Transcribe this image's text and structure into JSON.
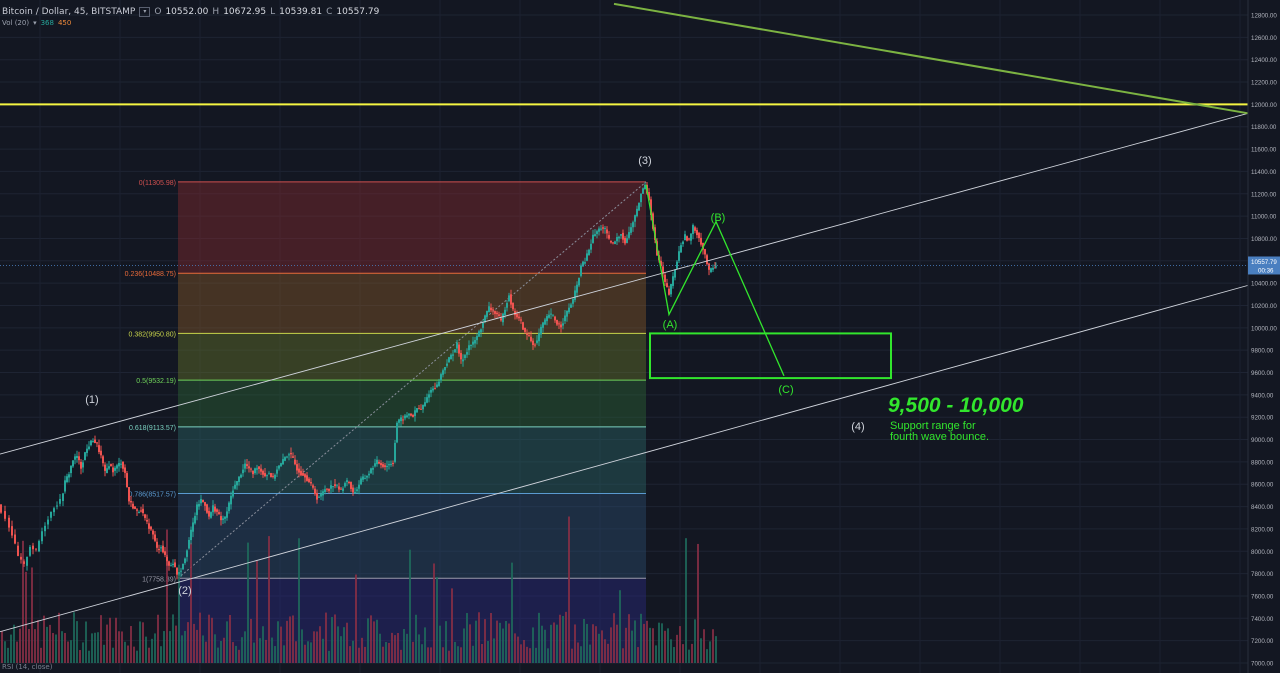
{
  "header": {
    "symbol": "Bitcoin / Dollar, 45, BITSTAMP",
    "o_label": "O",
    "o_value": "10552.00",
    "h_label": "H",
    "h_value": "10672.95",
    "l_label": "L",
    "l_value": "10539.81",
    "c_label": "C",
    "c_value": "10557.79"
  },
  "volume_header": {
    "label": "Vol (20)",
    "value1": "368",
    "value2": "450"
  },
  "footer_label": "RSI (14, close)",
  "colors": {
    "background": "#131722",
    "up_candle": "#26a69a",
    "down_candle": "#ef5350",
    "resistance_line": "#f5f542",
    "wave_green": "#32e62d",
    "trend_green": "#7cb342",
    "channel": "#d0d4dc",
    "price_tag": "#4a7fc0"
  },
  "chart_data": {
    "type": "candlestick",
    "y_axis": {
      "labels": [
        "12800.00",
        "12600.00",
        "12400.00",
        "12200.00",
        "12000.00",
        "11800.00",
        "11600.00",
        "11400.00",
        "11200.00",
        "11000.00",
        "10800.00",
        "10600.00",
        "10400.00",
        "10200.00",
        "10000.00",
        "9800.00",
        "9600.00",
        "9400.00",
        "9200.00",
        "9000.00",
        "8800.00",
        "8600.00",
        "8400.00",
        "8200.00",
        "8000.00",
        "7800.00",
        "7600.00",
        "7400.00",
        "7200.00",
        "7000.00"
      ],
      "range": [
        7000,
        12900
      ]
    },
    "current_price": "10557.79",
    "countdown": "00:36",
    "fibonacci": [
      {
        "label": "0(11305.98)",
        "value": 11305.98,
        "color": "#d0504f"
      },
      {
        "label": "0.236(10488.75)",
        "value": 10488.75,
        "color": "#e86a3a"
      },
      {
        "label": "0.382(9950.80)",
        "value": 9950.8,
        "color": "#c8d44a"
      },
      {
        "label": "0.5(9532.19)",
        "value": 9532.19,
        "color": "#6fd25a"
      },
      {
        "label": "0.618(9113.57)",
        "value": 9113.57,
        "color": "#7ad0c0"
      },
      {
        "label": "0.786(8517.57)",
        "value": 8517.57,
        "color": "#5a9ad0"
      },
      {
        "label": "1(7758.39)",
        "value": 7758.39,
        "color": "#9a9aa8"
      }
    ],
    "resistance_level": 12000,
    "support_zone": {
      "low": 9550,
      "high": 9950
    },
    "wave_labels": [
      {
        "text": "(1)",
        "color": "#d0d4dc"
      },
      {
        "text": "(2)",
        "color": "#d0d4dc"
      },
      {
        "text": "(3)",
        "color": "#d0d4dc"
      },
      {
        "text": "(4)",
        "color": "#d0d4dc"
      },
      {
        "text": "(A)",
        "color": "#32e62d"
      },
      {
        "text": "(B)",
        "color": "#32e62d"
      },
      {
        "text": "(C)",
        "color": "#32e62d"
      }
    ],
    "annotations": {
      "range_title": "9,500 - 10,000",
      "range_line1": "Support range for",
      "range_line2": "fourth wave bounce."
    },
    "price_path": [
      [
        0,
        8420
      ],
      [
        8,
        8300
      ],
      [
        14,
        8150
      ],
      [
        20,
        7950
      ],
      [
        26,
        7870
      ],
      [
        32,
        8050
      ],
      [
        38,
        8000
      ],
      [
        44,
        8180
      ],
      [
        50,
        8300
      ],
      [
        56,
        8400
      ],
      [
        62,
        8450
      ],
      [
        66,
        8620
      ],
      [
        70,
        8700
      ],
      [
        74,
        8820
      ],
      [
        78,
        8850
      ],
      [
        82,
        8750
      ],
      [
        86,
        8880
      ],
      [
        90,
        8950
      ],
      [
        94,
        9000
      ],
      [
        98,
        8950
      ],
      [
        102,
        8850
      ],
      [
        106,
        8700
      ],
      [
        110,
        8780
      ],
      [
        114,
        8720
      ],
      [
        118,
        8760
      ],
      [
        122,
        8800
      ],
      [
        126,
        8700
      ],
      [
        130,
        8450
      ],
      [
        134,
        8400
      ],
      [
        138,
        8350
      ],
      [
        142,
        8380
      ],
      [
        146,
        8280
      ],
      [
        150,
        8220
      ],
      [
        154,
        8150
      ],
      [
        158,
        8020
      ],
      [
        162,
        8050
      ],
      [
        166,
        7950
      ],
      [
        170,
        7870
      ],
      [
        174,
        7900
      ],
      [
        178,
        7800
      ],
      [
        182,
        7840
      ],
      [
        186,
        7950
      ],
      [
        190,
        8100
      ],
      [
        194,
        8250
      ],
      [
        198,
        8400
      ],
      [
        202,
        8460
      ],
      [
        206,
        8420
      ],
      [
        210,
        8300
      ],
      [
        214,
        8400
      ],
      [
        218,
        8350
      ],
      [
        222,
        8280
      ],
      [
        226,
        8300
      ],
      [
        230,
        8420
      ],
      [
        234,
        8560
      ],
      [
        238,
        8620
      ],
      [
        242,
        8700
      ],
      [
        246,
        8780
      ],
      [
        250,
        8740
      ],
      [
        254,
        8700
      ],
      [
        258,
        8760
      ],
      [
        262,
        8720
      ],
      [
        266,
        8680
      ],
      [
        270,
        8700
      ],
      [
        274,
        8650
      ],
      [
        278,
        8740
      ],
      [
        282,
        8780
      ],
      [
        286,
        8840
      ],
      [
        290,
        8880
      ],
      [
        294,
        8820
      ],
      [
        298,
        8740
      ],
      [
        302,
        8700
      ],
      [
        306,
        8680
      ],
      [
        310,
        8620
      ],
      [
        314,
        8560
      ],
      [
        318,
        8480
      ],
      [
        322,
        8500
      ],
      [
        326,
        8560
      ],
      [
        330,
        8560
      ],
      [
        334,
        8600
      ],
      [
        338,
        8580
      ],
      [
        342,
        8540
      ],
      [
        346,
        8620
      ],
      [
        350,
        8620
      ],
      [
        354,
        8520
      ],
      [
        358,
        8560
      ],
      [
        362,
        8640
      ],
      [
        366,
        8660
      ],
      [
        370,
        8700
      ],
      [
        374,
        8760
      ],
      [
        378,
        8800
      ],
      [
        382,
        8780
      ],
      [
        386,
        8760
      ],
      [
        390,
        8780
      ],
      [
        394,
        8800
      ],
      [
        398,
        9150
      ],
      [
        402,
        9180
      ],
      [
        406,
        9200
      ],
      [
        410,
        9230
      ],
      [
        414,
        9210
      ],
      [
        418,
        9280
      ],
      [
        422,
        9270
      ],
      [
        426,
        9330
      ],
      [
        430,
        9420
      ],
      [
        434,
        9460
      ],
      [
        438,
        9480
      ],
      [
        442,
        9580
      ],
      [
        446,
        9660
      ],
      [
        450,
        9720
      ],
      [
        454,
        9780
      ],
      [
        458,
        9850
      ],
      [
        462,
        9700
      ],
      [
        466,
        9760
      ],
      [
        470,
        9840
      ],
      [
        474,
        9860
      ],
      [
        478,
        9920
      ],
      [
        482,
        10000
      ],
      [
        486,
        10100
      ],
      [
        490,
        10180
      ],
      [
        494,
        10150
      ],
      [
        498,
        10120
      ],
      [
        502,
        10050
      ],
      [
        506,
        10180
      ],
      [
        510,
        10300
      ],
      [
        514,
        10150
      ],
      [
        518,
        10100
      ],
      [
        522,
        10050
      ],
      [
        526,
        9950
      ],
      [
        530,
        9920
      ],
      [
        534,
        9850
      ],
      [
        538,
        9880
      ],
      [
        542,
        10000
      ],
      [
        546,
        10060
      ],
      [
        550,
        10120
      ],
      [
        554,
        10100
      ],
      [
        558,
        10040
      ],
      [
        562,
        10020
      ],
      [
        566,
        10100
      ],
      [
        570,
        10180
      ],
      [
        574,
        10250
      ],
      [
        578,
        10380
      ],
      [
        582,
        10550
      ],
      [
        586,
        10600
      ],
      [
        590,
        10700
      ],
      [
        594,
        10820
      ],
      [
        598,
        10860
      ],
      [
        602,
        10900
      ],
      [
        606,
        10880
      ],
      [
        610,
        10780
      ],
      [
        614,
        10750
      ],
      [
        618,
        10800
      ],
      [
        622,
        10850
      ],
      [
        626,
        10760
      ],
      [
        630,
        10850
      ],
      [
        634,
        10950
      ],
      [
        638,
        11050
      ],
      [
        642,
        11200
      ],
      [
        646,
        11280
      ],
      [
        650,
        11150
      ],
      [
        654,
        10900
      ],
      [
        658,
        10650
      ],
      [
        662,
        10550
      ],
      [
        666,
        10400
      ],
      [
        670,
        10300
      ],
      [
        674,
        10450
      ],
      [
        678,
        10600
      ],
      [
        682,
        10750
      ],
      [
        686,
        10820
      ],
      [
        690,
        10780
      ],
      [
        694,
        10900
      ],
      [
        698,
        10850
      ],
      [
        702,
        10760
      ],
      [
        706,
        10650
      ],
      [
        710,
        10500
      ],
      [
        714,
        10540
      ],
      [
        716,
        10560
      ]
    ]
  }
}
